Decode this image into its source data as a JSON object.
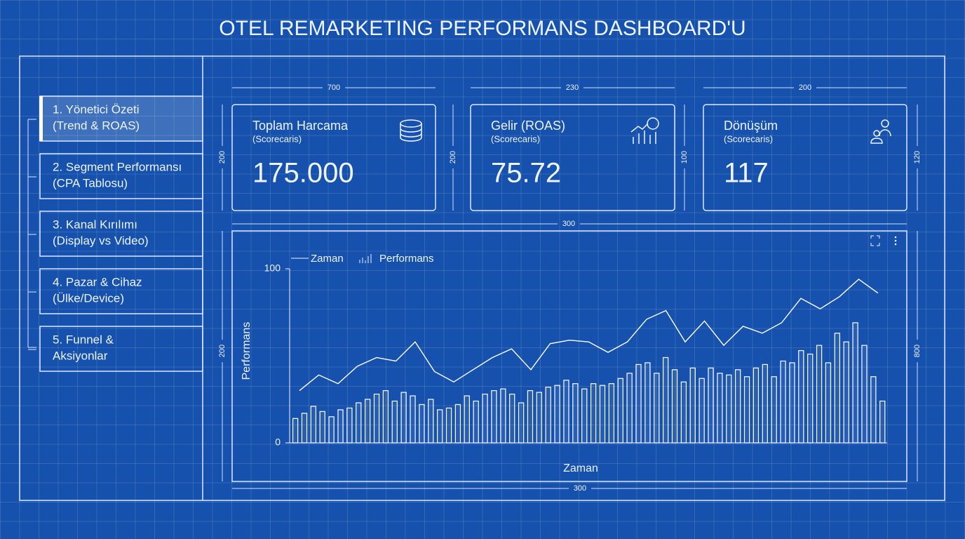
{
  "title": "OTEL REMARKETING PERFORMANS DASHBOARD'U",
  "nav": {
    "items": [
      {
        "lines": [
          "1. Yönetici Özeti",
          "(Trend & ROAS)"
        ]
      },
      {
        "lines": [
          "2. Segment Performansı",
          "(CPA Tablosu)"
        ]
      },
      {
        "lines": [
          "3. Kanal Kırılımı",
          "(Display vs Video)"
        ]
      },
      {
        "lines": [
          "4. Pazar & Cihaz",
          "(Ülke/Device)"
        ]
      },
      {
        "lines": [
          "5. Funnel &",
          "Aksiyonlar"
        ]
      }
    ]
  },
  "cards": [
    {
      "title": "Toplam Harcama",
      "subtitle": "(Scorecaris)",
      "value": "175.000"
    },
    {
      "title": "Gelir (ROAS)",
      "subtitle": "(Scorecaris)",
      "value": "75.72"
    },
    {
      "title": "Dönüşüm",
      "subtitle": "(Scorecaris)",
      "value": "117"
    }
  ],
  "dimension_labels": [
    "700",
    "230",
    "200",
    "200",
    "200",
    "100",
    "120",
    "300",
    "200",
    "300",
    "800"
  ],
  "chart_data": {
    "type": "combo",
    "x_label": "Zaman",
    "y_label": "Performans",
    "ylim": [
      0,
      100
    ],
    "yticks": [
      0,
      100
    ],
    "series": [
      {
        "name": "Zaman",
        "kind": "line",
        "color": "#ffffff",
        "values": [
          30,
          39,
          34,
          44,
          49,
          47,
          58,
          41,
          35,
          42,
          49,
          54,
          42,
          57,
          59,
          58,
          52,
          58,
          71,
          76,
          58,
          70,
          56,
          67,
          63,
          69,
          83,
          77,
          84,
          94,
          86
        ]
      },
      {
        "name": "Performans",
        "kind": "bar",
        "color": "#ffffff",
        "values": [
          14,
          17,
          21,
          18,
          15,
          19,
          20,
          23,
          25,
          28,
          30,
          24,
          29,
          27,
          22,
          25,
          19,
          20,
          22,
          27,
          24,
          28,
          30,
          31,
          28,
          23,
          30,
          29,
          32,
          33,
          36,
          34,
          31,
          34,
          33,
          34,
          37,
          40,
          45,
          46,
          40,
          49,
          42,
          35,
          43,
          37,
          43,
          40,
          39,
          42,
          38,
          43,
          45,
          38,
          47,
          46,
          53,
          51,
          56,
          46,
          63,
          58,
          69,
          56,
          38,
          24
        ]
      }
    ]
  }
}
